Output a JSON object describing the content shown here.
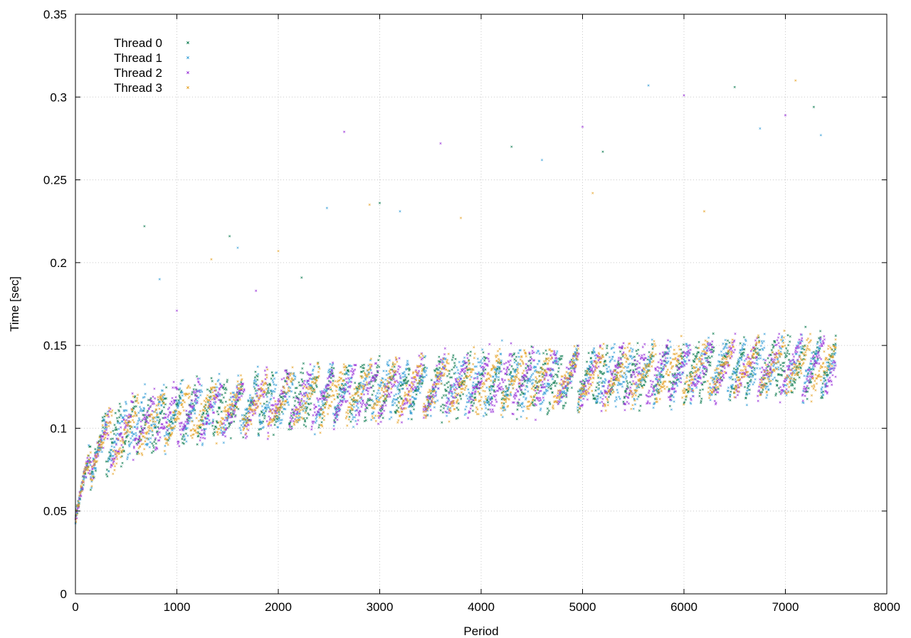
{
  "chart_data": {
    "type": "scatter",
    "title": "",
    "xlabel": "Period",
    "ylabel": "Time [sec]",
    "xlim": [
      0,
      8000
    ],
    "ylim": [
      0,
      0.35
    ],
    "x_ticks": [
      "0",
      "1000",
      "2000",
      "3000",
      "4000",
      "5000",
      "6000",
      "7000",
      "8000"
    ],
    "y_ticks": [
      "0",
      "0.05",
      "0.1",
      "0.15",
      "0.2",
      "0.25",
      "0.3",
      "0.35"
    ],
    "grid": true,
    "legend_position": "top-left",
    "marker": "small cross",
    "series": [
      {
        "name": "Thread 0",
        "color": "#0b7a4f"
      },
      {
        "name": "Thread 1",
        "color": "#3aa0d8"
      },
      {
        "name": "Thread 2",
        "color": "#9a34d9"
      },
      {
        "name": "Thread 3",
        "color": "#e6a52c"
      }
    ],
    "trend": {
      "x": [
        0,
        100,
        200,
        400,
        600,
        800,
        1000,
        1500,
        2000,
        2500,
        3000,
        3500,
        4000,
        4500,
        5000,
        5500,
        6000,
        6500,
        7000,
        7500
      ],
      "y": [
        0.046,
        0.075,
        0.085,
        0.093,
        0.099,
        0.103,
        0.106,
        0.11,
        0.114,
        0.118,
        0.121,
        0.123,
        0.125,
        0.127,
        0.128,
        0.13,
        0.132,
        0.134,
        0.135,
        0.136
      ]
    },
    "outliers": [
      [
        680,
        0.222
      ],
      [
        830,
        0.19
      ],
      [
        1000,
        0.171
      ],
      [
        1340,
        0.202
      ],
      [
        1520,
        0.216
      ],
      [
        1600,
        0.209
      ],
      [
        1780,
        0.183
      ],
      [
        2000,
        0.207
      ],
      [
        2230,
        0.191
      ],
      [
        2480,
        0.233
      ],
      [
        2650,
        0.279
      ],
      [
        2900,
        0.235
      ],
      [
        3000,
        0.236
      ],
      [
        3200,
        0.231
      ],
      [
        3600,
        0.272
      ],
      [
        3800,
        0.227
      ],
      [
        4300,
        0.27
      ],
      [
        4600,
        0.262
      ],
      [
        5000,
        0.282
      ],
      [
        5100,
        0.242
      ],
      [
        5200,
        0.267
      ],
      [
        5650,
        0.307
      ],
      [
        6000,
        0.301
      ],
      [
        6200,
        0.231
      ],
      [
        6500,
        0.306
      ],
      [
        6750,
        0.281
      ],
      [
        7000,
        0.289
      ],
      [
        7100,
        0.31
      ],
      [
        7280,
        0.294
      ],
      [
        7350,
        0.277
      ]
    ],
    "x_max_data": 7500
  }
}
